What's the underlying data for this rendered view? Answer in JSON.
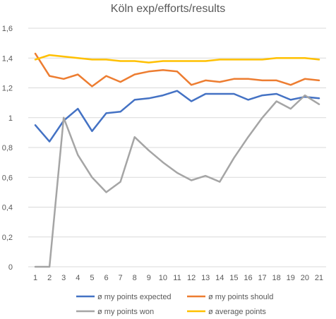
{
  "chart_data": {
    "type": "line",
    "title": "Köln exp/efforts/results",
    "x": [
      1,
      2,
      3,
      4,
      5,
      6,
      7,
      8,
      9,
      10,
      11,
      12,
      13,
      14,
      15,
      16,
      17,
      18,
      19,
      20,
      21
    ],
    "ylim": [
      0,
      1.6
    ],
    "yticks": [
      "0",
      "0,2",
      "0,4",
      "0,6",
      "0,8",
      "1",
      "1,2",
      "1,4",
      "1,6"
    ],
    "grid": true,
    "legend_position": "bottom",
    "series": [
      {
        "name": "ø my points expected",
        "color": "#4472C4",
        "values": [
          0.95,
          0.84,
          0.98,
          1.06,
          0.91,
          1.03,
          1.04,
          1.12,
          1.13,
          1.15,
          1.18,
          1.11,
          1.16,
          1.16,
          1.16,
          1.12,
          1.15,
          1.16,
          1.12,
          1.14,
          1.13
        ]
      },
      {
        "name": "ø my points should",
        "color": "#ED7D31",
        "values": [
          1.43,
          1.28,
          1.26,
          1.29,
          1.21,
          1.28,
          1.24,
          1.29,
          1.31,
          1.32,
          1.31,
          1.22,
          1.25,
          1.24,
          1.26,
          1.26,
          1.25,
          1.25,
          1.22,
          1.26,
          1.25
        ]
      },
      {
        "name": "ø my points won",
        "color": "#A5A5A5",
        "values": [
          0,
          0,
          1.0,
          0.75,
          0.6,
          0.5,
          0.57,
          0.87,
          0.78,
          0.7,
          0.63,
          0.58,
          0.61,
          0.57,
          0.73,
          0.87,
          1.0,
          1.11,
          1.06,
          1.15,
          1.09
        ]
      },
      {
        "name": "ø average points",
        "color": "#FFC000",
        "values": [
          1.39,
          1.42,
          1.41,
          1.4,
          1.39,
          1.39,
          1.38,
          1.38,
          1.37,
          1.38,
          1.38,
          1.38,
          1.38,
          1.39,
          1.39,
          1.39,
          1.39,
          1.4,
          1.4,
          1.4,
          1.39
        ]
      }
    ]
  }
}
